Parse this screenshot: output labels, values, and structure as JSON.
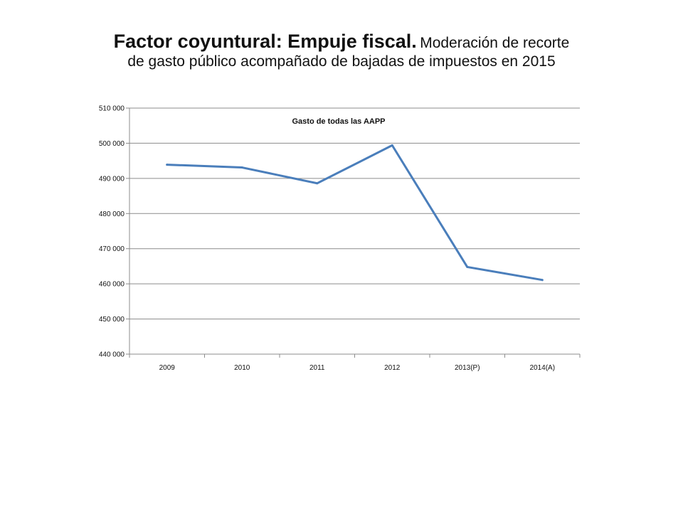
{
  "slide": {
    "title_bold": "Factor coyuntural: Empuje fiscal.",
    "title_rest": "Moderación de recorte",
    "title_line2": "de gasto público acompañado de bajadas de impuestos en 2015"
  },
  "chart_data": {
    "type": "line",
    "title": "",
    "categories": [
      "2009",
      "2010",
      "2011",
      "2012",
      "2013(P)",
      "2014(A)"
    ],
    "series": [
      {
        "name": "Gasto de todas las AAPP",
        "values": [
          493900,
          493100,
          488600,
          499400,
          464800,
          461100
        ],
        "color": "#4a7ebb"
      }
    ],
    "ylim": [
      440000,
      510000
    ],
    "yticks": [
      440000,
      450000,
      460000,
      470000,
      480000,
      490000,
      500000,
      510000
    ],
    "ytick_labels": [
      "440 000",
      "450 000",
      "460 000",
      "470 000",
      "480 000",
      "490 000",
      "500 000",
      "510 000"
    ],
    "grid": true,
    "legend": "inside top"
  }
}
